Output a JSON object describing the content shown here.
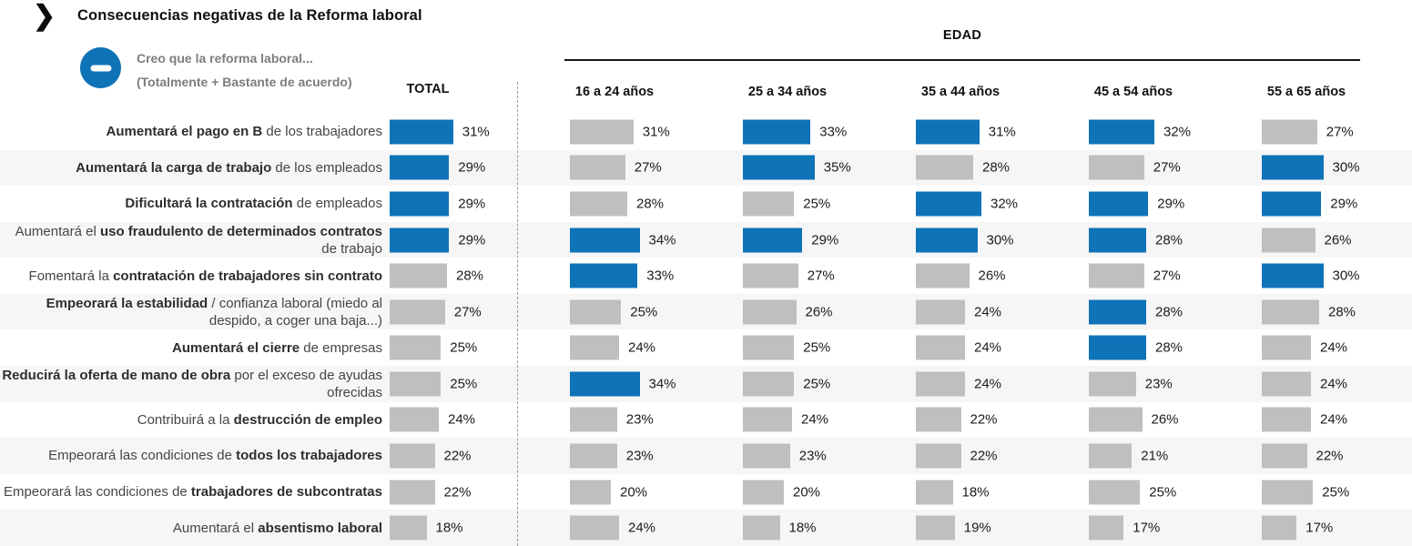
{
  "title": "Consecuencias negativas de la Reforma laboral",
  "legend": {
    "icon": "minus-in-circle",
    "line1": "Creo que la reforma laboral...",
    "line2": "(Totalmente + Bastante de acuerdo)"
  },
  "columns": {
    "total": "TOTAL",
    "group_header": "EDAD",
    "age_groups": [
      "16 a 24 años",
      "25 a 34 años",
      "35 a 44 años",
      "45 a 54 años",
      "55 a 65 años"
    ]
  },
  "colors": {
    "highlight": "#0f73b8",
    "neutral": "#bfbfbf",
    "row_band": "#f6f6f6"
  },
  "chart_data": {
    "type": "bar",
    "title": "Consecuencias negativas de la Reforma laboral",
    "subtitle": "Creo que la reforma laboral... (Totalmente + Bastante de acuerdo)",
    "unit": "%",
    "value_range": [
      0,
      40
    ],
    "series_columns": [
      "TOTAL",
      "16 a 24 años",
      "25 a 34 años",
      "35 a 44 años",
      "45 a 54 años",
      "55 a 65 años"
    ],
    "rows": [
      {
        "label_segments": [
          {
            "text": "Aumentará el pago en B",
            "bold": true
          },
          {
            "text": " de los trabajadores",
            "bold": false
          }
        ],
        "values": [
          31,
          31,
          33,
          31,
          32,
          27
        ],
        "highlighted": [
          true,
          false,
          true,
          true,
          true,
          false
        ]
      },
      {
        "label_segments": [
          {
            "text": "Aumentará la carga de trabajo",
            "bold": true
          },
          {
            "text": " de los empleados",
            "bold": false
          }
        ],
        "values": [
          29,
          27,
          35,
          28,
          27,
          30
        ],
        "highlighted": [
          true,
          false,
          true,
          false,
          false,
          true
        ]
      },
      {
        "label_segments": [
          {
            "text": "Dificultará la contratación",
            "bold": true
          },
          {
            "text": " de empleados",
            "bold": false
          }
        ],
        "values": [
          29,
          28,
          25,
          32,
          29,
          29
        ],
        "highlighted": [
          true,
          false,
          false,
          true,
          true,
          true
        ]
      },
      {
        "label_segments": [
          {
            "text": "Aumentará el ",
            "bold": false
          },
          {
            "text": "uso fraudulento de determinados contratos",
            "bold": true
          },
          {
            "text": " de trabajo",
            "bold": false
          }
        ],
        "values": [
          29,
          34,
          29,
          30,
          28,
          26
        ],
        "highlighted": [
          true,
          true,
          true,
          true,
          true,
          false
        ]
      },
      {
        "label_segments": [
          {
            "text": "Fomentará la ",
            "bold": false
          },
          {
            "text": "contratación de trabajadores sin contrato",
            "bold": true
          }
        ],
        "values": [
          28,
          33,
          27,
          26,
          27,
          30
        ],
        "highlighted": [
          false,
          true,
          false,
          false,
          false,
          true
        ]
      },
      {
        "label_segments": [
          {
            "text": "Empeorará la estabilidad",
            "bold": true
          },
          {
            "text": " / confianza laboral (miedo al despido, a coger una baja...)",
            "bold": false
          }
        ],
        "values": [
          27,
          25,
          26,
          24,
          28,
          28
        ],
        "highlighted": [
          false,
          false,
          false,
          false,
          true,
          false
        ]
      },
      {
        "label_segments": [
          {
            "text": "Aumentará el cierre",
            "bold": true
          },
          {
            "text": " de empresas",
            "bold": false
          }
        ],
        "values": [
          25,
          24,
          25,
          24,
          28,
          24
        ],
        "highlighted": [
          false,
          false,
          false,
          false,
          true,
          false
        ]
      },
      {
        "label_segments": [
          {
            "text": "Reducirá la oferta de mano de obra",
            "bold": true
          },
          {
            "text": " por el exceso de ayudas ofrecidas",
            "bold": false
          }
        ],
        "values": [
          25,
          34,
          25,
          24,
          23,
          24
        ],
        "highlighted": [
          false,
          true,
          false,
          false,
          false,
          false
        ]
      },
      {
        "label_segments": [
          {
            "text": "Contribuirá a la ",
            "bold": false
          },
          {
            "text": "destrucción de empleo",
            "bold": true
          }
        ],
        "values": [
          24,
          23,
          24,
          22,
          26,
          24
        ],
        "highlighted": [
          false,
          false,
          false,
          false,
          false,
          false
        ]
      },
      {
        "label_segments": [
          {
            "text": "Empeorará las condiciones de ",
            "bold": false
          },
          {
            "text": "todos los trabajadores",
            "bold": true
          }
        ],
        "values": [
          22,
          23,
          23,
          22,
          21,
          22
        ],
        "highlighted": [
          false,
          false,
          false,
          false,
          false,
          false
        ]
      },
      {
        "label_segments": [
          {
            "text": "Empeorará las condiciones de ",
            "bold": false
          },
          {
            "text": "trabajadores de subcontratas",
            "bold": true
          }
        ],
        "values": [
          22,
          20,
          20,
          18,
          25,
          25
        ],
        "highlighted": [
          false,
          false,
          false,
          false,
          false,
          false
        ]
      },
      {
        "label_segments": [
          {
            "text": "Aumentará el ",
            "bold": false
          },
          {
            "text": "absentismo laboral",
            "bold": true
          }
        ],
        "values": [
          18,
          24,
          18,
          19,
          17,
          17
        ],
        "highlighted": [
          false,
          false,
          false,
          false,
          false,
          false
        ]
      }
    ]
  }
}
